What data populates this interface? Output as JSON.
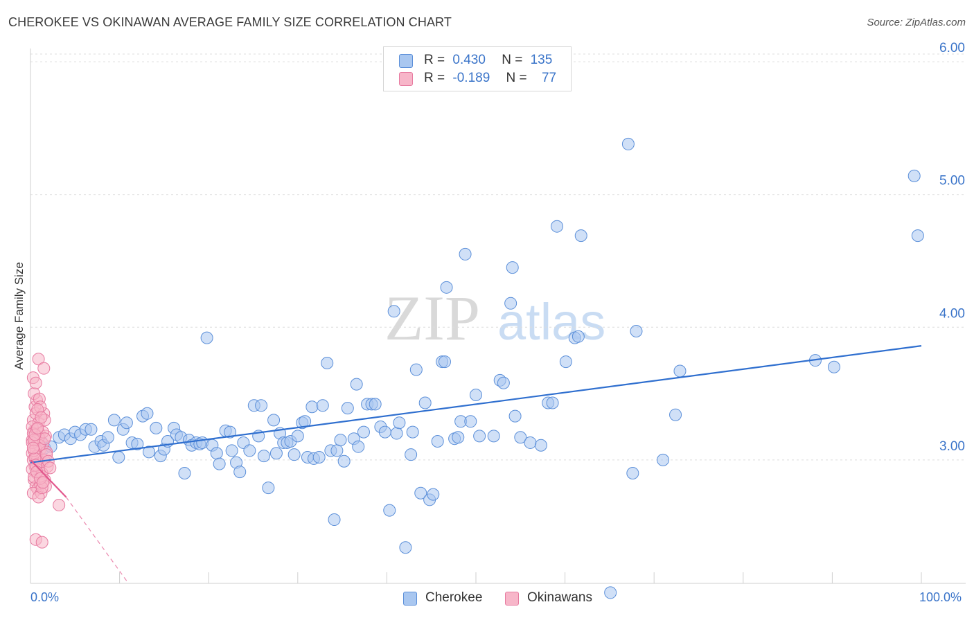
{
  "title": "CHEROKEE VS OKINAWAN AVERAGE FAMILY SIZE CORRELATION CHART",
  "source": "Source: ZipAtlas.com",
  "watermark": {
    "zip": "ZIP",
    "atlas": "atlas"
  },
  "legend": {
    "rows": [
      {
        "r_label": "R =",
        "r_value": "0.430",
        "n_label": "N =",
        "n_value": "135",
        "color": "#a9c7f0",
        "stroke": "#5b8fd9"
      },
      {
        "r_label": "R =",
        "r_value": "-0.189",
        "n_label": "N =",
        "n_value": "77",
        "color": "#f7b6c9",
        "stroke": "#e77aa0"
      }
    ]
  },
  "bottom_legend": [
    {
      "label": "Cherokee",
      "color": "#a9c7f0",
      "stroke": "#5b8fd9"
    },
    {
      "label": "Okinawans",
      "color": "#f7b6c9",
      "stroke": "#e77aa0"
    }
  ],
  "chart_data": {
    "type": "scatter",
    "title": "CHEROKEE VS OKINAWAN AVERAGE FAMILY SIZE CORRELATION CHART",
    "ylabel": "Average Family Size",
    "xlabel": "",
    "x_tick_labels": {
      "min": "0.0%",
      "max": "100.0%"
    },
    "y_ticks": [
      {
        "value": 3.0,
        "label": "3.00"
      },
      {
        "value": 4.0,
        "label": "4.00"
      },
      {
        "value": 5.0,
        "label": "5.00"
      },
      {
        "value": 6.0,
        "label": "6.00"
      }
    ],
    "xlim": [
      0,
      100
    ],
    "ylim": [
      2.07,
      6.1
    ],
    "grid": true,
    "series": [
      {
        "name": "Cherokee",
        "color": "#a9c7f0",
        "stroke": "#5b8fd9",
        "trend": {
          "x": [
            0,
            100
          ],
          "y": [
            2.98,
            3.86
          ],
          "color": "#2f6fcf"
        },
        "points": [
          [
            0.6,
            3.17
          ],
          [
            0.8,
            3.18
          ],
          [
            1.2,
            3.14
          ],
          [
            1.6,
            3.09
          ],
          [
            2.3,
            3.1
          ],
          [
            3.2,
            3.17
          ],
          [
            3.8,
            3.19
          ],
          [
            4.5,
            3.16
          ],
          [
            5.0,
            3.21
          ],
          [
            5.6,
            3.19
          ],
          [
            6.2,
            3.23
          ],
          [
            6.8,
            3.23
          ],
          [
            7.2,
            3.1
          ],
          [
            7.9,
            3.14
          ],
          [
            8.2,
            3.11
          ],
          [
            8.7,
            3.17
          ],
          [
            9.4,
            3.3
          ],
          [
            9.9,
            3.02
          ],
          [
            10.4,
            3.23
          ],
          [
            10.8,
            3.28
          ],
          [
            11.4,
            3.13
          ],
          [
            12.0,
            3.12
          ],
          [
            12.6,
            3.33
          ],
          [
            13.1,
            3.35
          ],
          [
            13.3,
            3.06
          ],
          [
            14.1,
            3.24
          ],
          [
            14.6,
            3.03
          ],
          [
            15.0,
            3.08
          ],
          [
            15.4,
            3.14
          ],
          [
            16.1,
            3.24
          ],
          [
            16.4,
            3.19
          ],
          [
            16.9,
            3.17
          ],
          [
            17.3,
            2.9
          ],
          [
            17.8,
            3.15
          ],
          [
            18.1,
            3.11
          ],
          [
            18.6,
            3.13
          ],
          [
            19.0,
            3.12
          ],
          [
            19.3,
            3.13
          ],
          [
            19.8,
            3.92
          ],
          [
            20.4,
            3.11
          ],
          [
            20.9,
            3.05
          ],
          [
            21.2,
            2.97
          ],
          [
            21.9,
            3.22
          ],
          [
            22.4,
            3.21
          ],
          [
            22.6,
            3.07
          ],
          [
            23.1,
            2.98
          ],
          [
            23.5,
            2.91
          ],
          [
            23.9,
            3.13
          ],
          [
            24.6,
            3.07
          ],
          [
            25.1,
            3.41
          ],
          [
            25.6,
            3.18
          ],
          [
            25.9,
            3.41
          ],
          [
            26.2,
            3.03
          ],
          [
            26.7,
            2.79
          ],
          [
            27.3,
            3.3
          ],
          [
            27.6,
            3.05
          ],
          [
            28.0,
            3.2
          ],
          [
            28.4,
            3.13
          ],
          [
            28.8,
            3.13
          ],
          [
            29.2,
            3.14
          ],
          [
            29.6,
            3.04
          ],
          [
            30.0,
            3.18
          ],
          [
            30.5,
            3.28
          ],
          [
            30.8,
            3.29
          ],
          [
            31.1,
            3.02
          ],
          [
            31.6,
            3.4
          ],
          [
            31.8,
            3.01
          ],
          [
            32.4,
            3.02
          ],
          [
            32.8,
            3.41
          ],
          [
            33.3,
            3.73
          ],
          [
            33.7,
            3.07
          ],
          [
            34.1,
            2.55
          ],
          [
            34.4,
            3.07
          ],
          [
            34.8,
            3.15
          ],
          [
            35.2,
            2.99
          ],
          [
            35.6,
            3.39
          ],
          [
            36.3,
            3.16
          ],
          [
            36.6,
            3.57
          ],
          [
            36.8,
            3.1
          ],
          [
            37.4,
            3.21
          ],
          [
            37.8,
            3.42
          ],
          [
            38.3,
            3.42
          ],
          [
            38.7,
            3.42
          ],
          [
            39.3,
            3.25
          ],
          [
            39.8,
            3.21
          ],
          [
            40.3,
            2.62
          ],
          [
            40.8,
            4.12
          ],
          [
            41.1,
            3.2
          ],
          [
            41.4,
            3.28
          ],
          [
            42.1,
            2.34
          ],
          [
            42.7,
            3.04
          ],
          [
            42.9,
            3.21
          ],
          [
            43.3,
            3.68
          ],
          [
            43.8,
            2.75
          ],
          [
            44.3,
            3.43
          ],
          [
            44.8,
            2.7
          ],
          [
            45.2,
            2.74
          ],
          [
            45.7,
            3.14
          ],
          [
            46.2,
            3.74
          ],
          [
            46.5,
            3.74
          ],
          [
            46.7,
            4.3
          ],
          [
            47.6,
            3.16
          ],
          [
            48.0,
            3.17
          ],
          [
            48.3,
            3.29
          ],
          [
            48.8,
            4.55
          ],
          [
            49.4,
            3.29
          ],
          [
            50.0,
            3.49
          ],
          [
            50.4,
            3.18
          ],
          [
            52.0,
            3.18
          ],
          [
            52.7,
            3.6
          ],
          [
            53.1,
            3.58
          ],
          [
            53.9,
            4.18
          ],
          [
            54.1,
            4.45
          ],
          [
            54.4,
            3.33
          ],
          [
            55.0,
            3.17
          ],
          [
            56.1,
            3.13
          ],
          [
            57.3,
            3.11
          ],
          [
            58.1,
            3.43
          ],
          [
            58.6,
            3.43
          ],
          [
            59.1,
            4.76
          ],
          [
            60.1,
            3.74
          ],
          [
            61.1,
            3.92
          ],
          [
            61.5,
            3.93
          ],
          [
            61.8,
            4.69
          ],
          [
            65.1,
            2.0
          ],
          [
            67.1,
            5.38
          ],
          [
            67.6,
            2.9
          ],
          [
            68.0,
            3.97
          ],
          [
            71.0,
            3.0
          ],
          [
            72.4,
            3.34
          ],
          [
            72.9,
            3.67
          ],
          [
            88.1,
            3.75
          ],
          [
            90.2,
            3.7
          ],
          [
            99.2,
            5.14
          ],
          [
            99.6,
            4.69
          ]
        ]
      },
      {
        "name": "Okinawans",
        "color": "#f7b6c9",
        "stroke": "#e77aa0",
        "trend": {
          "x": [
            0,
            4.0
          ],
          "y": [
            3.0,
            2.72
          ],
          "color": "#e2568c",
          "dashed_extension": {
            "x": [
              4.0,
              11.0
            ],
            "y": [
              2.72,
              2.07
            ]
          }
        },
        "points": [
          [
            0.2,
            3.15
          ],
          [
            0.3,
            3.3
          ],
          [
            0.4,
            3.22
          ],
          [
            0.5,
            3.18
          ],
          [
            0.6,
            3.1
          ],
          [
            0.2,
            3.05
          ],
          [
            0.3,
            3.0
          ],
          [
            0.5,
            2.95
          ],
          [
            0.7,
            2.9
          ],
          [
            0.4,
            2.85
          ],
          [
            0.6,
            2.8
          ],
          [
            0.8,
            2.78
          ],
          [
            0.3,
            2.75
          ],
          [
            0.5,
            3.4
          ],
          [
            0.7,
            3.45
          ],
          [
            0.4,
            3.5
          ],
          [
            0.6,
            3.35
          ],
          [
            0.9,
            3.28
          ],
          [
            1.0,
            3.2
          ],
          [
            0.8,
            3.12
          ],
          [
            1.1,
            3.08
          ],
          [
            0.9,
            3.02
          ],
          [
            1.2,
            2.98
          ],
          [
            1.0,
            2.92
          ],
          [
            1.3,
            2.88
          ],
          [
            1.1,
            2.82
          ],
          [
            0.2,
            3.25
          ],
          [
            0.3,
            3.2
          ],
          [
            0.5,
            3.14
          ],
          [
            0.6,
            3.08
          ],
          [
            0.7,
            3.03
          ],
          [
            0.8,
            2.97
          ],
          [
            0.2,
            2.93
          ],
          [
            0.4,
            2.87
          ],
          [
            1.5,
            3.35
          ],
          [
            1.6,
            3.3
          ],
          [
            1.7,
            3.18
          ],
          [
            1.4,
            3.12
          ],
          [
            1.8,
            3.06
          ],
          [
            1.5,
            3.0
          ],
          [
            1.9,
            2.95
          ],
          [
            1.3,
            2.9
          ],
          [
            1.6,
            2.85
          ],
          [
            1.7,
            2.8
          ],
          [
            1.2,
            2.75
          ],
          [
            0.9,
            2.72
          ],
          [
            1.0,
            3.46
          ],
          [
            1.1,
            3.4
          ],
          [
            0.8,
            3.38
          ],
          [
            1.2,
            3.32
          ],
          [
            0.3,
            3.62
          ],
          [
            0.6,
            3.58
          ],
          [
            0.7,
            3.23
          ],
          [
            0.9,
            3.17
          ],
          [
            1.0,
            3.11
          ],
          [
            0.2,
            3.13
          ],
          [
            0.4,
            3.07
          ],
          [
            0.5,
            3.01
          ],
          [
            0.6,
            2.96
          ],
          [
            0.7,
            2.91
          ],
          [
            1.4,
            3.21
          ],
          [
            1.6,
            3.16
          ],
          [
            1.8,
            3.04
          ],
          [
            2.0,
            2.99
          ],
          [
            2.2,
            2.94
          ],
          [
            1.3,
            2.79
          ],
          [
            0.9,
            3.76
          ],
          [
            1.5,
            3.69
          ],
          [
            3.2,
            2.66
          ],
          [
            0.6,
            2.4
          ],
          [
            1.3,
            2.38
          ],
          [
            0.4,
            3.15
          ],
          [
            0.3,
            3.09
          ],
          [
            0.5,
            3.19
          ],
          [
            0.8,
            3.24
          ],
          [
            1.1,
            2.86
          ],
          [
            1.4,
            2.83
          ]
        ]
      }
    ]
  }
}
